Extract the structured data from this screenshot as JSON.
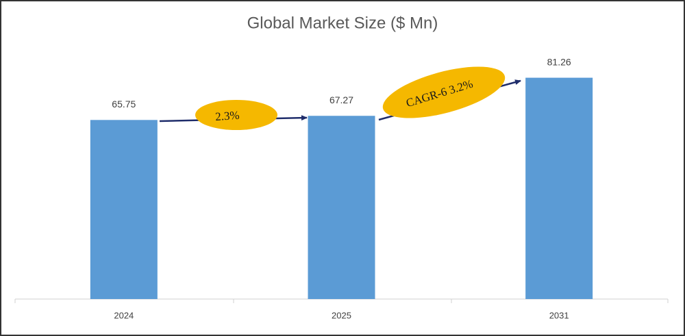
{
  "chart_data": {
    "type": "bar",
    "title": "Global Market Size ($ Mn)",
    "categories": [
      "2024",
      "2025",
      "2031"
    ],
    "values": [
      65.75,
      67.27,
      81.26
    ],
    "color": "#5b9bd5",
    "ylim": [
      0,
      100
    ],
    "annotations": [
      "2.3%",
      "CAGR-6 3.2%"
    ]
  }
}
